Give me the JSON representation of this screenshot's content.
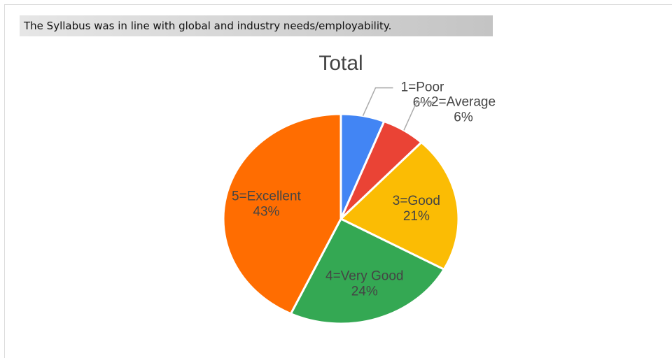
{
  "header": {
    "text": "The Syllabus was in line with global and industry needs/employability."
  },
  "chart_data": {
    "type": "pie",
    "title": "Total",
    "categories": [
      "1=Poor",
      "2=Average",
      "3=Good",
      "4=Very Good",
      "5=Excellent"
    ],
    "values": [
      6,
      6,
      21,
      24,
      43
    ],
    "value_labels": [
      "6%",
      "6%",
      "21%",
      "24%",
      "43%"
    ],
    "colors": [
      "#4285f4",
      "#ea4335",
      "#fbbc04",
      "#34a853",
      "#ff6d01"
    ]
  }
}
